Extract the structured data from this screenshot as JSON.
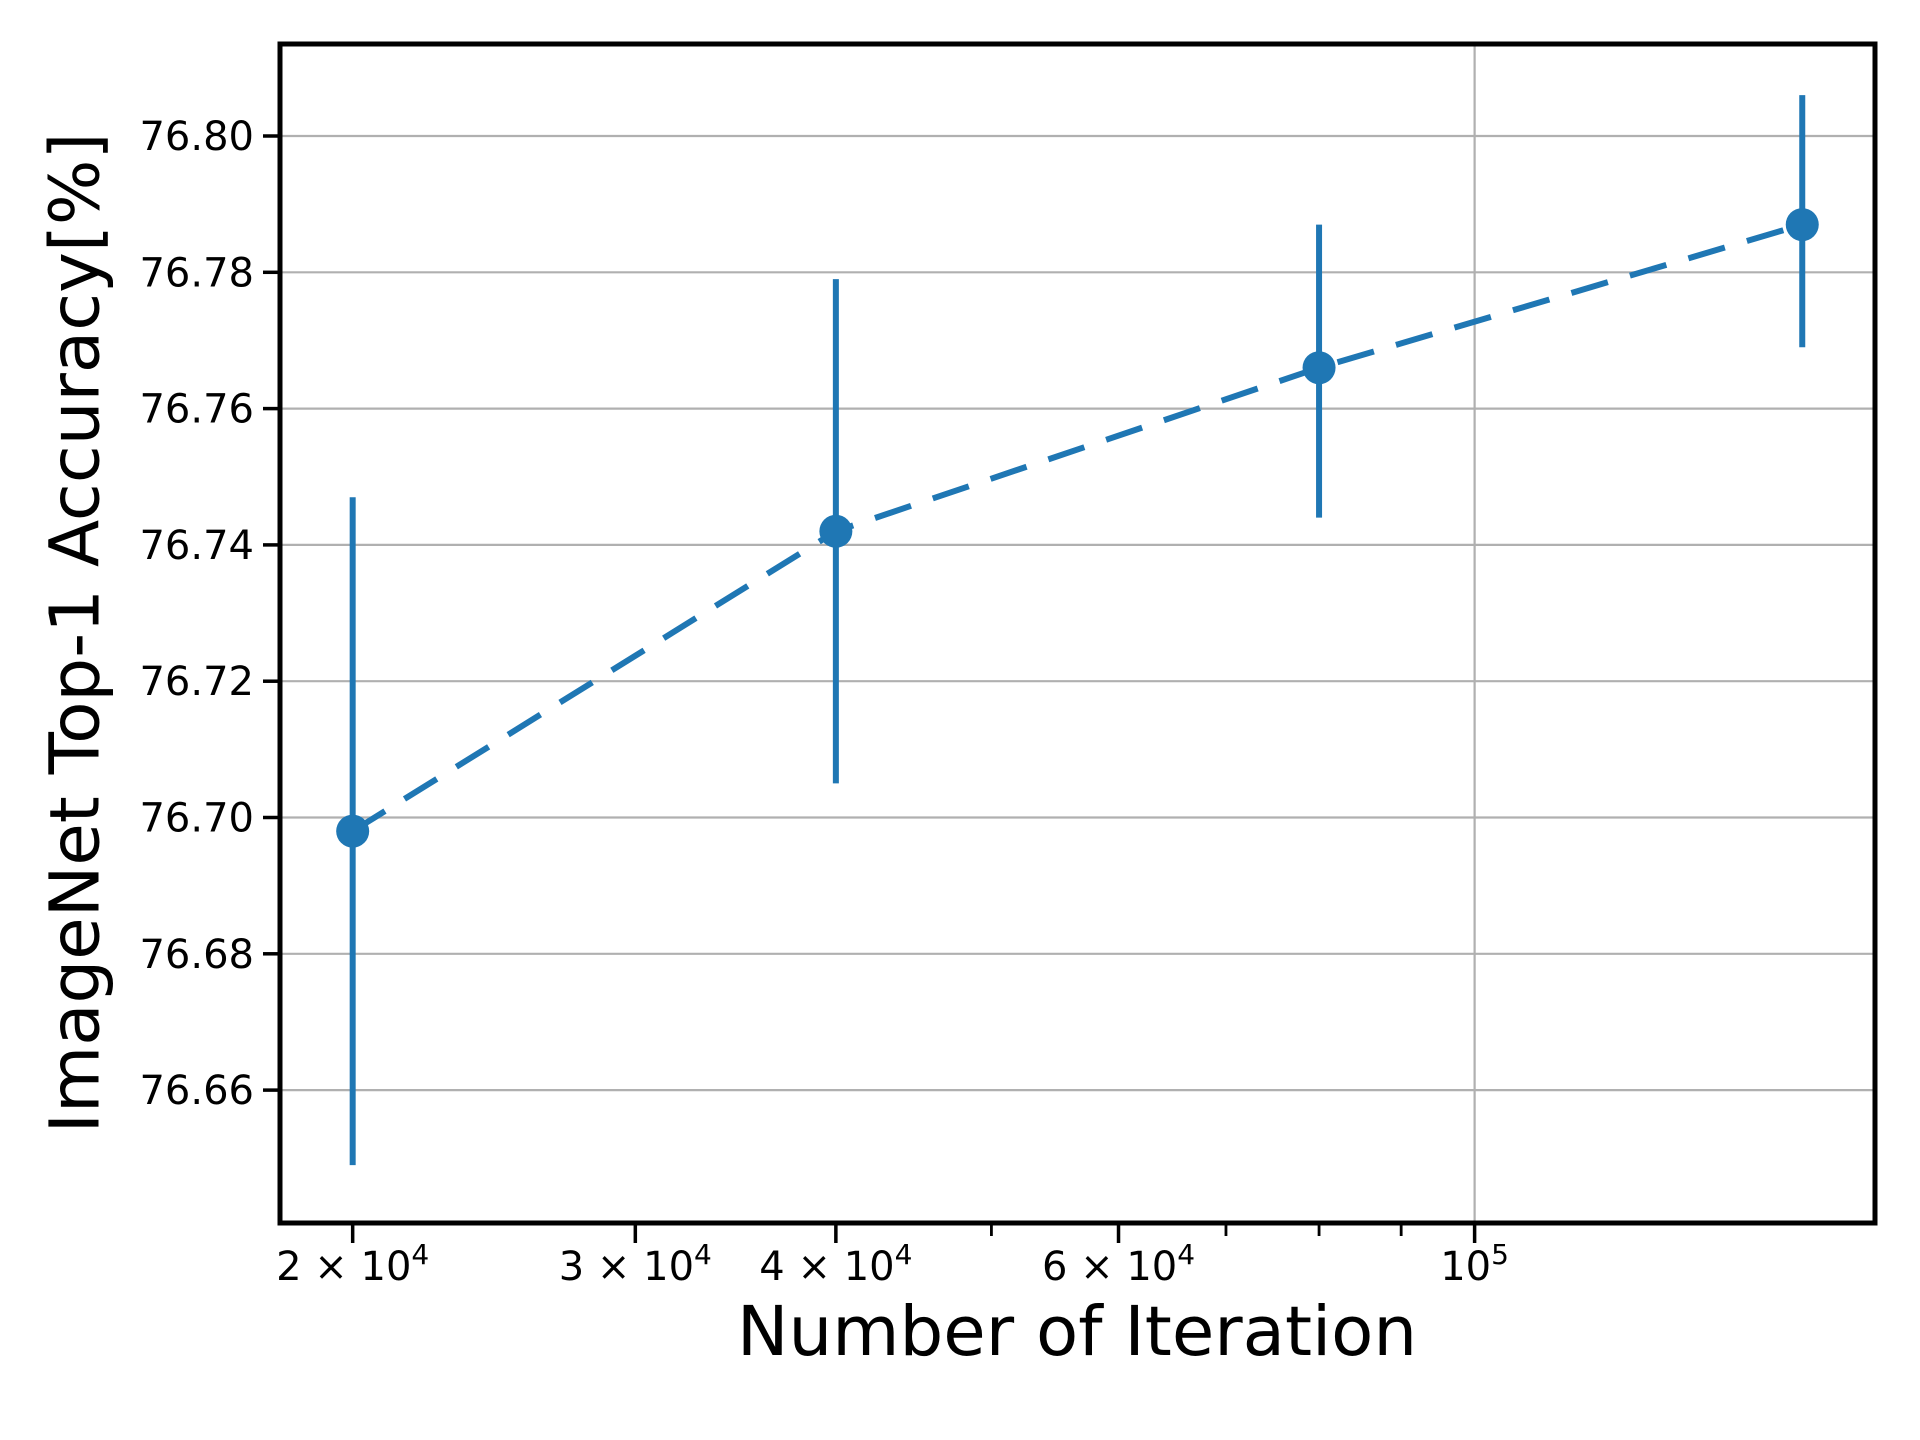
{
  "figure": {
    "background": "#ffffff"
  },
  "chart_data": {
    "type": "line",
    "title": "",
    "xlabel": "Number of Iteration",
    "ylabel": "ImageNet Top-1 Accuracy[%]",
    "x_scale": "log",
    "xlim": [
      18020,
      177600
    ],
    "ylim": [
      76.6405,
      76.8135
    ],
    "grid": {
      "color": "#b0b0b0",
      "horizontal_at": [
        76.66,
        76.68,
        76.7,
        76.72,
        76.74,
        76.76,
        76.78,
        76.8
      ],
      "vertical_at": [
        100000
      ]
    },
    "series": [
      {
        "name": "imagenet-top1-accuracy",
        "color": "#1f77b4",
        "line_style": "dashed",
        "marker": "circle",
        "x": [
          20000,
          40000,
          80000,
          160000
        ],
        "y": [
          76.698,
          76.742,
          76.766,
          76.787
        ],
        "y_err_low": [
          76.649,
          76.705,
          76.744,
          76.769
        ],
        "y_err_high": [
          76.747,
          76.779,
          76.787,
          76.806
        ]
      }
    ],
    "x_ticks": [
      {
        "value": 20000,
        "base": "2 × 10",
        "sup": "4"
      },
      {
        "value": 30000,
        "base": "3 × 10",
        "sup": "4"
      },
      {
        "value": 40000,
        "base": "4 × 10",
        "sup": "4"
      },
      {
        "value": 60000,
        "base": "6 × 10",
        "sup": "4"
      },
      {
        "value": 100000,
        "base": "10",
        "sup": "5"
      }
    ],
    "x_minor_ticks": [
      50000,
      70000,
      80000,
      90000
    ],
    "y_ticks": [
      {
        "value": 76.8,
        "label": "76.80"
      },
      {
        "value": 76.78,
        "label": "76.78"
      },
      {
        "value": 76.76,
        "label": "76.76"
      },
      {
        "value": 76.74,
        "label": "76.74"
      },
      {
        "value": 76.72,
        "label": "76.72"
      },
      {
        "value": 76.7,
        "label": "76.70"
      },
      {
        "value": 76.68,
        "label": "76.68"
      },
      {
        "value": 76.66,
        "label": "76.66"
      }
    ],
    "axis_color": "#000000",
    "legend": "none"
  }
}
